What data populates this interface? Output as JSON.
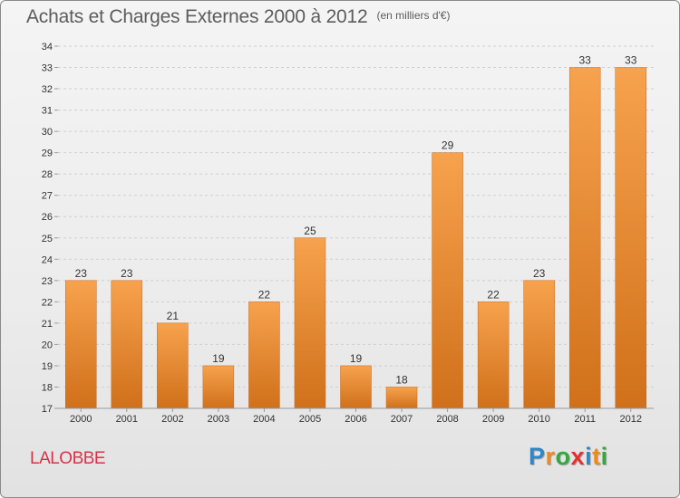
{
  "header": {
    "title": "Achats et Charges Externes 2000 à 2012",
    "unit": "(en milliers d'€)"
  },
  "footer": {
    "place": "LALOBBE",
    "logo": {
      "letters": [
        "P",
        "r",
        "o",
        "x",
        "i",
        "t",
        "i"
      ],
      "colors": [
        "#2f86c8",
        "#f08a1c",
        "#33a83f",
        "#e3312d",
        "#2f86c8",
        "#f08a1c",
        "#33a83f"
      ]
    }
  },
  "colors": {
    "bar_top": "#f7a24e",
    "bar_bottom": "#d0701a",
    "grid": "#cfcfcf",
    "text": "#333333",
    "place": "#d8334a"
  },
  "chart_data": {
    "type": "bar",
    "categories": [
      "2000",
      "2001",
      "2002",
      "2003",
      "2004",
      "2005",
      "2006",
      "2007",
      "2008",
      "2009",
      "2010",
      "2011",
      "2012"
    ],
    "values": [
      23,
      23,
      21,
      19,
      22,
      25,
      19,
      18,
      29,
      22,
      23,
      33,
      33
    ],
    "ylim": [
      17,
      34
    ],
    "yticks": [
      17,
      18,
      19,
      20,
      21,
      22,
      23,
      24,
      25,
      26,
      27,
      28,
      29,
      30,
      31,
      32,
      33,
      34
    ],
    "grid": true,
    "data_labels": true
  }
}
